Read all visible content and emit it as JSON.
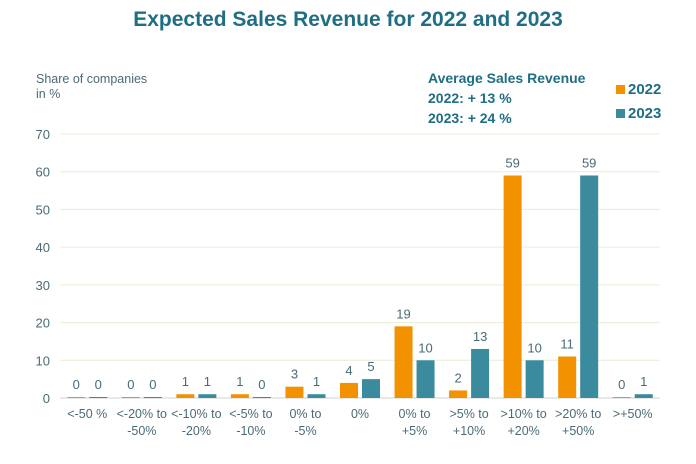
{
  "chart_data": {
    "type": "bar",
    "title": "Expected Sales Revenue for 2022 and 2023",
    "ylabel": "Share of companies in %",
    "ylim": [
      0,
      70
    ],
    "yticks": [
      0,
      10,
      20,
      30,
      40,
      50,
      60,
      70
    ],
    "grid": true,
    "legend_position": "top-right",
    "categories": [
      "<-50 %",
      "<-20% to -50%",
      "<-10% to -20%",
      "<-5% to -10%",
      "0% to -5%",
      "0%",
      "0% to +5%",
      ">5% to +10%",
      ">10% to +20%",
      ">20% to +50%",
      ">+50%"
    ],
    "series": [
      {
        "name": "2022",
        "color": "#f39200",
        "values": [
          0,
          0,
          1,
          1,
          3,
          4,
          19,
          2,
          59,
          11,
          0
        ]
      },
      {
        "name": "2023",
        "color": "#3a8b9e",
        "values": [
          0,
          0,
          1,
          0,
          1,
          5,
          10,
          13,
          10,
          59,
          1
        ]
      }
    ],
    "annotation": {
      "heading": "Average Sales Revenue",
      "lines": [
        "2022: + 13 %",
        "2023: + 24 %"
      ]
    }
  }
}
